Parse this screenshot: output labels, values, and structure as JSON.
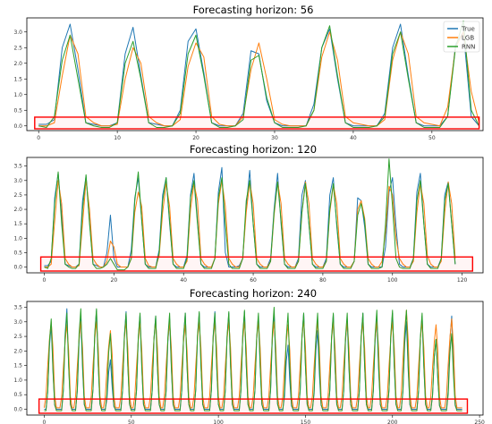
{
  "colors": {
    "True": "#1f77b4",
    "LGB": "#ff7f0e",
    "RNN": "#2ca02c",
    "highlight": "#ff0000"
  },
  "chart_data": [
    {
      "type": "line",
      "title": "Forecasting horizon: 56",
      "xlim": [
        -1.5,
        56.5
      ],
      "ylim": [
        -0.15,
        3.45
      ],
      "xticks": [
        0,
        10,
        20,
        30,
        40,
        50
      ],
      "yticks": [
        0.0,
        0.5,
        1.0,
        1.5,
        2.0,
        2.5,
        3.0
      ],
      "ytick_labels": [
        "0.0",
        "0.5",
        "1.0",
        "1.5",
        "2.0",
        "2.5",
        "3.0"
      ],
      "legend": {
        "position": "top-right",
        "entries": [
          "True",
          "LGB",
          "RNN"
        ]
      },
      "highlight_box": {
        "x": [
          -0.5,
          56
        ],
        "y": [
          -0.15,
          0.28
        ]
      },
      "x_start": 0,
      "series": [
        {
          "name": "True",
          "values": [
            0.05,
            0.05,
            0.2,
            2.5,
            3.25,
            1.8,
            0.1,
            0.05,
            0.0,
            0.0,
            0.1,
            2.3,
            3.15,
            1.6,
            0.1,
            0.05,
            0.0,
            0.0,
            0.5,
            2.7,
            3.1,
            1.7,
            0.1,
            0.0,
            0.0,
            0.0,
            0.4,
            2.4,
            2.3,
            0.8,
            0.1,
            0.0,
            0.0,
            0.0,
            0.0,
            0.7,
            2.5,
            3.1,
            1.5,
            0.1,
            0.0,
            0.0,
            0.0,
            0.0,
            0.4,
            2.5,
            3.25,
            1.6,
            0.1,
            0.0,
            0.0,
            0.0,
            0.3,
            2.6,
            3.0,
            0.3,
            0.0
          ]
        },
        {
          "name": "LGB",
          "values": [
            0.0,
            0.0,
            0.1,
            1.6,
            2.9,
            2.3,
            0.3,
            0.1,
            0.0,
            0.0,
            0.05,
            1.5,
            2.5,
            2.0,
            0.3,
            0.1,
            0.0,
            0.0,
            0.2,
            1.9,
            2.65,
            2.2,
            0.3,
            0.05,
            0.0,
            0.0,
            0.3,
            1.8,
            2.65,
            1.5,
            0.2,
            0.05,
            0.0,
            0.0,
            0.0,
            0.5,
            2.2,
            3.0,
            2.1,
            0.3,
            0.1,
            0.05,
            0.0,
            0.0,
            0.2,
            2.1,
            3.0,
            2.3,
            0.3,
            0.1,
            0.05,
            0.0,
            0.6,
            2.5,
            3.0,
            1.1,
            0.1
          ]
        },
        {
          "name": "RNN",
          "values": [
            0.0,
            -0.05,
            0.3,
            2.1,
            2.9,
            1.5,
            0.1,
            0.0,
            -0.05,
            -0.05,
            0.1,
            2.0,
            2.7,
            1.5,
            0.1,
            -0.05,
            -0.05,
            0.0,
            0.4,
            2.3,
            2.9,
            1.6,
            0.1,
            -0.05,
            -0.05,
            0.0,
            0.2,
            2.1,
            2.25,
            0.9,
            0.1,
            -0.05,
            -0.05,
            -0.05,
            0.0,
            0.5,
            2.5,
            3.2,
            1.6,
            0.1,
            -0.05,
            -0.05,
            -0.05,
            0.0,
            0.3,
            2.3,
            3.0,
            1.5,
            0.1,
            -0.05,
            -0.05,
            -0.05,
            0.3,
            2.5,
            3.35,
            0.5,
            0.0
          ]
        }
      ]
    },
    {
      "type": "line",
      "title": "Forecasting horizon: 120",
      "xlim": [
        -5,
        126
      ],
      "ylim": [
        -0.2,
        3.8
      ],
      "xticks": [
        0,
        20,
        40,
        60,
        80,
        100,
        120
      ],
      "yticks": [
        0.0,
        0.5,
        1.0,
        1.5,
        2.0,
        2.5,
        3.0,
        3.5
      ],
      "ytick_labels": [
        "0.0",
        "0.5",
        "1.0",
        "1.5",
        "2.0",
        "2.5",
        "3.0",
        "3.5"
      ],
      "legend": null,
      "highlight_box": {
        "x": [
          -1,
          123
        ],
        "y": [
          -0.2,
          0.35
        ]
      },
      "x_start": 0,
      "series": [
        {
          "name": "True",
          "values": [
            0.05,
            0.05,
            0.2,
            2.4,
            3.25,
            1.8,
            0.1,
            0.05,
            0.0,
            0.0,
            0.1,
            2.3,
            3.15,
            1.6,
            0.1,
            0.05,
            0.0,
            0.0,
            0.5,
            1.8,
            0.3,
            0.0,
            0.0,
            0.0,
            0.0,
            0.6,
            2.4,
            3.1,
            1.6,
            0.1,
            0.0,
            0.0,
            0.0,
            0.6,
            2.5,
            3.1,
            1.5,
            0.1,
            0.0,
            0.0,
            0.0,
            0.4,
            2.5,
            3.25,
            1.6,
            0.1,
            0.0,
            0.0,
            0.0,
            0.3,
            2.6,
            3.45,
            0.5,
            0.0,
            0.0,
            0.0,
            0.05,
            0.3,
            2.1,
            3.35,
            1.5,
            0.1,
            0.0,
            0.0,
            0.0,
            0.3,
            2.0,
            3.25,
            1.5,
            0.1,
            0.0,
            0.0,
            0.0,
            0.3,
            2.5,
            3.0,
            1.5,
            0.1,
            0.0,
            0.0,
            0.0,
            0.3,
            2.5,
            3.1,
            1.4,
            0.1,
            0.0,
            0.0,
            0.0,
            0.2,
            2.4,
            2.3,
            1.4,
            0.1,
            0.0,
            0.0,
            0.0,
            0.0,
            0.7,
            2.6,
            3.1,
            1.4,
            0.1,
            0.0,
            0.0,
            0.0,
            0.3,
            2.6,
            3.25,
            1.5,
            0.1,
            0.0,
            0.0,
            0.0,
            0.3,
            2.5,
            2.95,
            1.5,
            0.1
          ]
        },
        {
          "name": "LGB",
          "values": [
            0.0,
            0.0,
            0.1,
            1.6,
            3.0,
            2.2,
            0.3,
            0.1,
            0.0,
            0.0,
            0.05,
            1.5,
            3.0,
            2.0,
            0.3,
            0.1,
            0.0,
            0.0,
            0.2,
            0.9,
            0.7,
            0.1,
            0.0,
            0.0,
            0.0,
            0.3,
            1.9,
            2.6,
            2.1,
            0.3,
            0.05,
            0.0,
            0.0,
            0.4,
            1.9,
            2.9,
            2.1,
            0.3,
            0.1,
            0.0,
            0.0,
            0.2,
            2.0,
            2.9,
            2.3,
            0.3,
            0.1,
            0.0,
            0.0,
            0.3,
            2.2,
            3.0,
            2.1,
            0.3,
            0.1,
            0.0,
            0.0,
            0.3,
            1.9,
            2.95,
            2.2,
            0.3,
            0.1,
            0.0,
            0.0,
            0.2,
            1.8,
            2.95,
            2.2,
            0.3,
            0.1,
            0.0,
            0.0,
            0.2,
            1.9,
            2.95,
            2.2,
            0.3,
            0.1,
            0.0,
            0.0,
            0.2,
            1.9,
            2.85,
            2.2,
            0.3,
            0.1,
            0.0,
            0.0,
            0.2,
            2.0,
            2.3,
            1.7,
            0.3,
            0.1,
            0.0,
            0.0,
            0.2,
            1.2,
            2.8,
            2.5,
            1.0,
            0.3,
            0.1,
            0.0,
            0.0,
            0.2,
            1.9,
            2.9,
            2.2,
            0.4,
            0.1,
            0.0,
            0.0,
            0.2,
            1.9,
            2.95,
            2.2,
            0.3
          ]
        },
        {
          "name": "RNN",
          "values": [
            0.0,
            -0.05,
            0.3,
            2.2,
            3.3,
            1.5,
            0.1,
            0.0,
            -0.05,
            -0.05,
            0.1,
            2.0,
            3.2,
            1.5,
            0.1,
            -0.05,
            -0.05,
            0.0,
            0.1,
            0.3,
            0.1,
            -0.1,
            -0.1,
            -0.1,
            0.0,
            0.3,
            2.3,
            3.3,
            1.6,
            0.1,
            -0.05,
            -0.05,
            -0.05,
            0.5,
            2.3,
            3.1,
            1.6,
            0.1,
            -0.05,
            -0.05,
            -0.05,
            0.3,
            2.4,
            3.0,
            1.5,
            0.1,
            -0.05,
            -0.05,
            -0.05,
            0.3,
            2.4,
            3.1,
            1.5,
            0.1,
            -0.05,
            -0.05,
            -0.05,
            0.3,
            2.3,
            3.0,
            1.5,
            0.1,
            -0.05,
            -0.05,
            -0.05,
            0.2,
            1.9,
            2.95,
            1.6,
            0.1,
            -0.05,
            -0.05,
            -0.05,
            0.2,
            1.9,
            2.9,
            1.5,
            0.1,
            -0.05,
            -0.05,
            -0.05,
            0.2,
            2.0,
            2.9,
            1.5,
            0.1,
            -0.05,
            -0.05,
            -0.05,
            0.2,
            1.8,
            2.2,
            1.6,
            0.1,
            -0.05,
            -0.05,
            -0.05,
            0.0,
            1.5,
            3.75,
            2.1,
            0.3,
            0.0,
            -0.05,
            -0.05,
            -0.05,
            0.3,
            2.3,
            3.0,
            1.5,
            0.1,
            -0.05,
            -0.05,
            -0.05,
            0.3,
            2.3,
            2.9,
            1.5,
            0.1
          ]
        }
      ]
    },
    {
      "type": "line",
      "title": "Forecasting horizon: 240",
      "xlim": [
        -10,
        252
      ],
      "ylim": [
        -0.2,
        3.7
      ],
      "xticks": [
        0,
        50,
        100,
        150,
        200,
        250
      ],
      "yticks": [
        0.0,
        0.5,
        1.0,
        1.5,
        2.0,
        2.5,
        3.0,
        3.5
      ],
      "ytick_labels": [
        "0.0",
        "0.5",
        "1.0",
        "1.5",
        "2.0",
        "2.5",
        "3.0",
        "3.5"
      ],
      "legend": null,
      "highlight_box": {
        "x": [
          -3,
          243
        ],
        "y": [
          -0.2,
          0.35
        ]
      },
      "x_start": 0,
      "peaks": [
        4,
        13,
        21,
        30,
        38,
        47,
        55,
        64,
        72,
        81,
        89,
        98,
        106,
        115,
        123,
        132,
        140,
        149,
        157,
        166,
        174,
        183,
        191,
        200,
        208,
        217,
        225,
        234
      ],
      "series": [
        {
          "name": "True",
          "peak_values": [
            2.9,
            3.45,
            3.1,
            3.4,
            1.7,
            3.35,
            3.25,
            3.2,
            3.1,
            3.3,
            3.3,
            3.35,
            3.3,
            3.35,
            3.2,
            3.3,
            2.2,
            3.3,
            2.7,
            3.25,
            3.1,
            3.3,
            3.1,
            3.3,
            3.0,
            3.2,
            2.4,
            3.2
          ]
        },
        {
          "name": "LGB",
          "peak_values": [
            3.0,
            2.9,
            3.0,
            3.0,
            2.7,
            3.0,
            2.95,
            3.0,
            3.0,
            2.9,
            3.0,
            3.0,
            3.0,
            3.0,
            3.0,
            3.0,
            2.9,
            3.05,
            3.0,
            3.0,
            3.0,
            3.0,
            3.0,
            3.0,
            3.4,
            3.0,
            2.9,
            3.1
          ]
        },
        {
          "name": "RNN",
          "peak_values": [
            3.1,
            3.3,
            3.45,
            3.45,
            2.6,
            3.3,
            3.3,
            3.2,
            3.3,
            3.3,
            3.35,
            3.3,
            3.35,
            3.4,
            3.3,
            3.5,
            3.3,
            3.3,
            3.3,
            3.3,
            3.3,
            3.3,
            3.4,
            3.4,
            3.4,
            3.3,
            2.4,
            2.6
          ]
        }
      ]
    }
  ]
}
